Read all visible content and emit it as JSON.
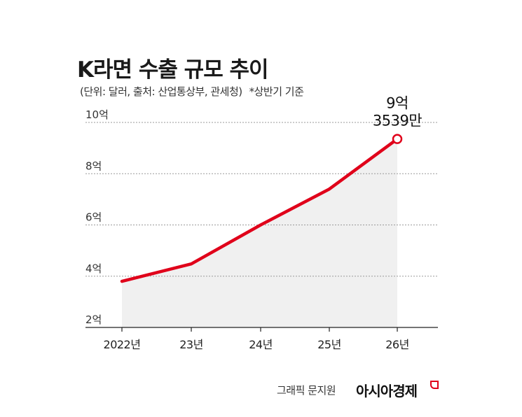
{
  "title": "K라면 수출 규모 추이",
  "subtitle": "(단위: 달러, 출처: 산업통상부, 관세청)",
  "note": "*상반기 기준",
  "chart_data": {
    "type": "area",
    "title": "K라면 수출 규모 추이",
    "categories": [
      "2022년",
      "23년",
      "24년",
      "25년",
      "26년"
    ],
    "values": [
      380000000,
      448000000,
      600000000,
      740000000,
      935390000
    ],
    "ylim": [
      200000000,
      1000000000
    ],
    "yticks": [
      {
        "value": 200000000,
        "label": "2억"
      },
      {
        "value": 400000000,
        "label": "4억"
      },
      {
        "value": 600000000,
        "label": "6억"
      },
      {
        "value": 800000000,
        "label": "8억"
      },
      {
        "value": 1000000000,
        "label": "10억"
      }
    ],
    "annotation": {
      "index": 4,
      "lines": [
        "9억",
        "3539만"
      ]
    },
    "grid": true,
    "line_color": "#e0001a",
    "area_color": "#f0f0f0"
  },
  "credit": "그래픽 문지원",
  "brand": "아시아경제"
}
